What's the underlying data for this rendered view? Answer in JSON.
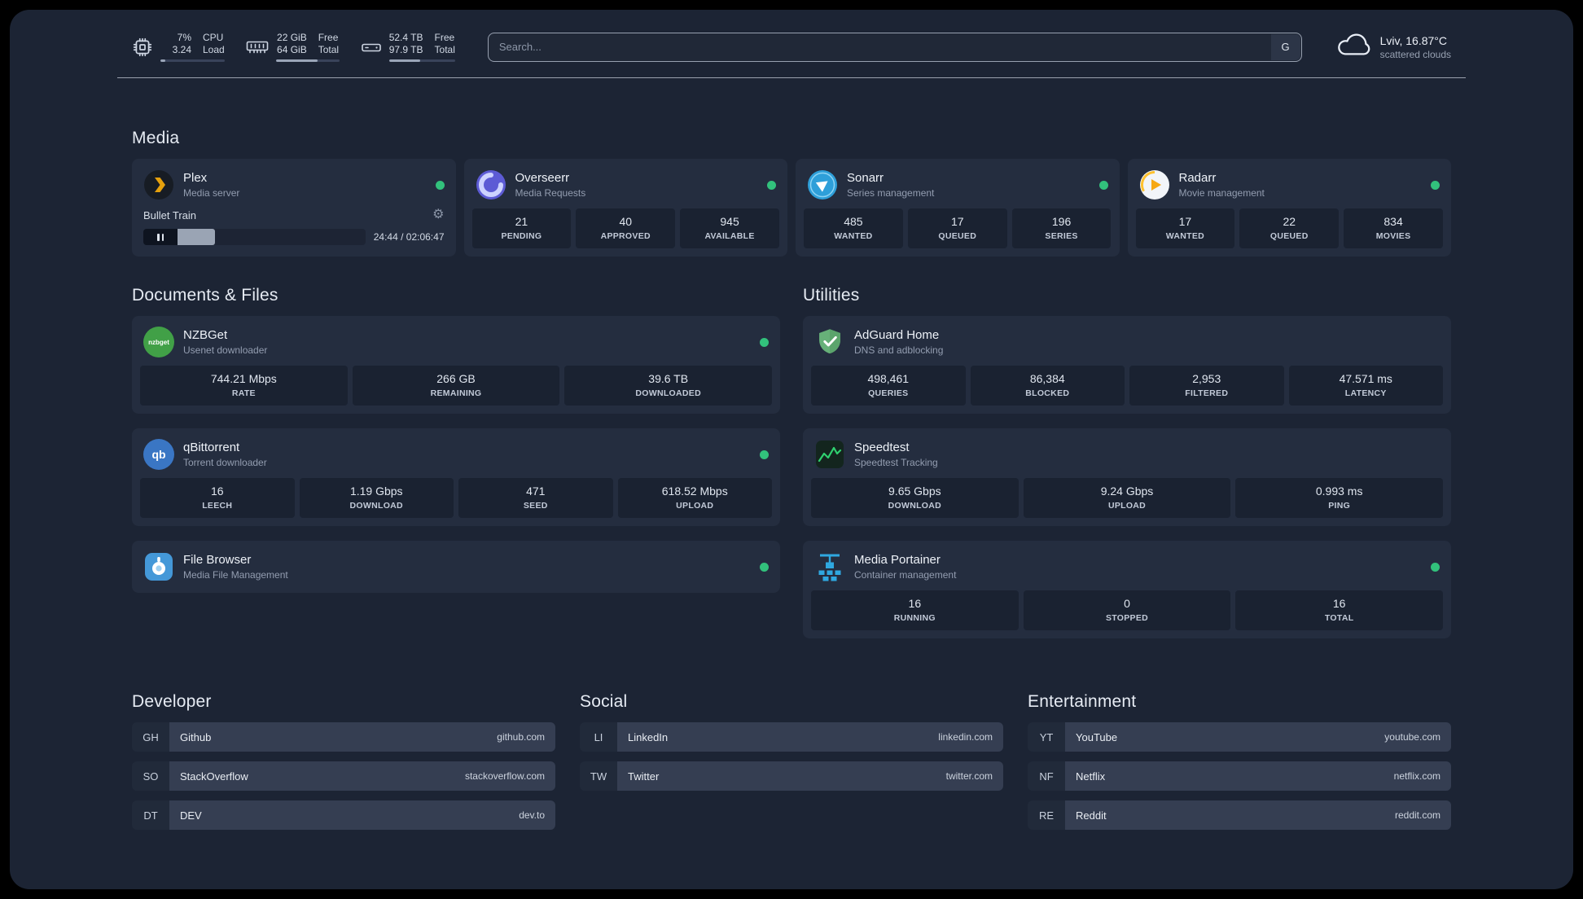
{
  "topbar": {
    "resources": [
      {
        "v1": "7%",
        "v2": "3.24",
        "l1": "CPU",
        "l2": "Load",
        "bar": 8
      },
      {
        "v1": "22 GiB",
        "v2": "64 GiB",
        "l1": "Free",
        "l2": "Total",
        "bar": 66
      },
      {
        "v1": "52.4 TB",
        "v2": "97.9 TB",
        "l1": "Free",
        "l2": "Total",
        "bar": 47
      }
    ],
    "search": {
      "placeholder": "Search...",
      "button": "G"
    },
    "weather": {
      "location": "Lviv, 16.87°C",
      "condition": "scattered clouds"
    }
  },
  "sections": {
    "media": {
      "title": "Media",
      "plex": {
        "name": "Plex",
        "desc": "Media server",
        "track": "Bullet Train",
        "time": "24:44 / 02:06:47",
        "progress": 20
      },
      "overseerr": {
        "name": "Overseerr",
        "desc": "Media Requests",
        "stats": [
          {
            "value": "21",
            "label": "PENDING"
          },
          {
            "value": "40",
            "label": "APPROVED"
          },
          {
            "value": "945",
            "label": "AVAILABLE"
          }
        ]
      },
      "sonarr": {
        "name": "Sonarr",
        "desc": "Series management",
        "stats": [
          {
            "value": "485",
            "label": "WANTED"
          },
          {
            "value": "17",
            "label": "QUEUED"
          },
          {
            "value": "196",
            "label": "SERIES"
          }
        ]
      },
      "radarr": {
        "name": "Radarr",
        "desc": "Movie management",
        "stats": [
          {
            "value": "17",
            "label": "WANTED"
          },
          {
            "value": "22",
            "label": "QUEUED"
          },
          {
            "value": "834",
            "label": "MOVIES"
          }
        ]
      }
    },
    "documents": {
      "title": "Documents & Files",
      "nzbget": {
        "name": "NZBGet",
        "desc": "Usenet downloader",
        "stats": [
          {
            "value": "744.21 Mbps",
            "label": "RATE"
          },
          {
            "value": "266 GB",
            "label": "REMAINING"
          },
          {
            "value": "39.6 TB",
            "label": "DOWNLOADED"
          }
        ]
      },
      "qbittorrent": {
        "name": "qBittorrent",
        "desc": "Torrent downloader",
        "stats": [
          {
            "value": "16",
            "label": "LEECH"
          },
          {
            "value": "1.19 Gbps",
            "label": "DOWNLOAD"
          },
          {
            "value": "471",
            "label": "SEED"
          },
          {
            "value": "618.52 Mbps",
            "label": "UPLOAD"
          }
        ]
      },
      "filebrowser": {
        "name": "File Browser",
        "desc": "Media File Management"
      }
    },
    "utilities": {
      "title": "Utilities",
      "adguard": {
        "name": "AdGuard Home",
        "desc": "DNS and adblocking",
        "stats": [
          {
            "value": "498,461",
            "label": "QUERIES"
          },
          {
            "value": "86,384",
            "label": "BLOCKED"
          },
          {
            "value": "2,953",
            "label": "FILTERED"
          },
          {
            "value": "47.571 ms",
            "label": "LATENCY"
          }
        ]
      },
      "speedtest": {
        "name": "Speedtest",
        "desc": "Speedtest Tracking",
        "stats": [
          {
            "value": "9.65 Gbps",
            "label": "DOWNLOAD"
          },
          {
            "value": "9.24 Gbps",
            "label": "UPLOAD"
          },
          {
            "value": "0.993 ms",
            "label": "PING"
          }
        ]
      },
      "portainer": {
        "name": "Media Portainer",
        "desc": "Container management",
        "stats": [
          {
            "value": "16",
            "label": "RUNNING"
          },
          {
            "value": "0",
            "label": "STOPPED"
          },
          {
            "value": "16",
            "label": "TOTAL"
          }
        ]
      }
    }
  },
  "bookmarks": {
    "developer": {
      "title": "Developer",
      "items": [
        {
          "abbr": "GH",
          "name": "Github",
          "url": "github.com"
        },
        {
          "abbr": "SO",
          "name": "StackOverflow",
          "url": "stackoverflow.com"
        },
        {
          "abbr": "DT",
          "name": "DEV",
          "url": "dev.to"
        }
      ]
    },
    "social": {
      "title": "Social",
      "items": [
        {
          "abbr": "LI",
          "name": "LinkedIn",
          "url": "linkedin.com"
        },
        {
          "abbr": "TW",
          "name": "Twitter",
          "url": "twitter.com"
        }
      ]
    },
    "entertainment": {
      "title": "Entertainment",
      "items": [
        {
          "abbr": "YT",
          "name": "YouTube",
          "url": "youtube.com"
        },
        {
          "abbr": "NF",
          "name": "Netflix",
          "url": "netflix.com"
        },
        {
          "abbr": "RE",
          "name": "Reddit",
          "url": "reddit.com"
        }
      ]
    }
  },
  "icons": {
    "nzbget_text": "nzbget",
    "qbittorrent_text": "qb"
  },
  "colors": {
    "status_ok": "#32c17c",
    "plex_amber": "#e5a00d",
    "adguard_green": "#67b179",
    "portainer_blue": "#2fa8e0"
  }
}
